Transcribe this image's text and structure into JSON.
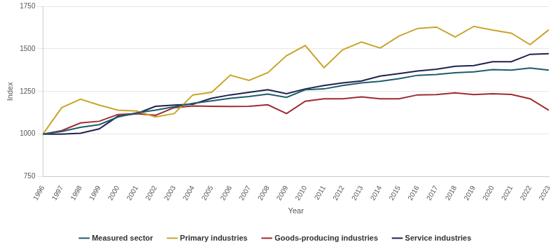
{
  "chart_data": {
    "type": "line",
    "x_label": "Year",
    "y_label": "Index",
    "categories": [
      "1996",
      "1997",
      "1998",
      "1999",
      "2000",
      "2001",
      "2002",
      "2003",
      "2004",
      "2005",
      "2006",
      "2007",
      "2008",
      "2009",
      "2010",
      "2011",
      "2012",
      "2013",
      "2014",
      "2015",
      "2016",
      "2017",
      "2018",
      "2019",
      "2020",
      "2021",
      "2022",
      "2023"
    ],
    "series": [
      {
        "name": "Measured sector",
        "color": "#1d5c6c",
        "values": [
          1000,
          1015,
          1040,
          1055,
          1100,
          1125,
          1140,
          1160,
          1180,
          1195,
          1210,
          1220,
          1235,
          1215,
          1260,
          1265,
          1285,
          1300,
          1310,
          1325,
          1345,
          1350,
          1360,
          1365,
          1378,
          1375,
          1388,
          1375
        ]
      },
      {
        "name": "Primary industries",
        "color": "#c9a52c",
        "values": [
          1000,
          1155,
          1205,
          1170,
          1140,
          1135,
          1100,
          1120,
          1230,
          1245,
          1345,
          1315,
          1360,
          1460,
          1520,
          1390,
          1495,
          1540,
          1505,
          1575,
          1620,
          1628,
          1570,
          1632,
          1610,
          1592,
          1525,
          1612
        ]
      },
      {
        "name": "Goods-producing industries",
        "color": "#9e2b30",
        "values": [
          1000,
          1020,
          1065,
          1075,
          1115,
          1120,
          1110,
          1155,
          1165,
          1163,
          1162,
          1163,
          1172,
          1120,
          1193,
          1207,
          1207,
          1218,
          1207,
          1207,
          1230,
          1232,
          1242,
          1232,
          1237,
          1233,
          1207,
          1140
        ]
      },
      {
        "name": "Service industries",
        "color": "#1f2150",
        "values": [
          1000,
          1000,
          1005,
          1030,
          1105,
          1120,
          1163,
          1170,
          1175,
          1210,
          1230,
          1245,
          1260,
          1237,
          1265,
          1285,
          1300,
          1312,
          1340,
          1355,
          1370,
          1380,
          1398,
          1402,
          1425,
          1425,
          1468,
          1472
        ]
      }
    ],
    "ylim": [
      750,
      1750
    ],
    "yticks": [
      750,
      1000,
      1250,
      1500,
      1750
    ],
    "grid": true,
    "legend": "bottom"
  }
}
